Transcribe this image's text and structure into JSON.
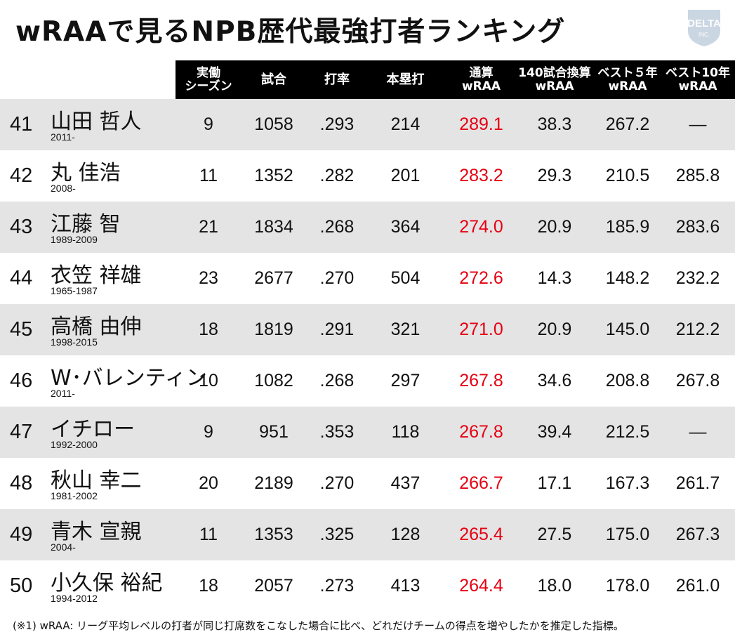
{
  "title": "wRAAで見るNPB歴代最強打者ランキング",
  "logo": {
    "top": "DELTA",
    "bottom": "INC."
  },
  "headers": [
    {
      "line1": "実働",
      "line2": "シーズン"
    },
    {
      "line1": "試合",
      "line2": ""
    },
    {
      "line1": "打率",
      "line2": ""
    },
    {
      "line1": "本塁打",
      "line2": ""
    },
    {
      "line1": "通算",
      "line2": "wRAA"
    },
    {
      "line1": "140試合換算",
      "line2": "wRAA"
    },
    {
      "line1": "ベスト５年",
      "line2": "wRAA"
    },
    {
      "line1": "ベスト10年",
      "line2": "wRAA"
    }
  ],
  "rows": [
    {
      "rank": "41",
      "name": "山田 哲人",
      "years": "2011-",
      "seasons": "9",
      "games": "1058",
      "avg": ".293",
      "hr": "214",
      "wraa": "289.1",
      "per140": "38.3",
      "best5": "267.2",
      "best10": "—"
    },
    {
      "rank": "42",
      "name": "丸 佳浩",
      "years": "2008-",
      "seasons": "11",
      "games": "1352",
      "avg": ".282",
      "hr": "201",
      "wraa": "283.2",
      "per140": "29.3",
      "best5": "210.5",
      "best10": "285.8"
    },
    {
      "rank": "43",
      "name": "江藤 智",
      "years": "1989-2009",
      "seasons": "21",
      "games": "1834",
      "avg": ".268",
      "hr": "364",
      "wraa": "274.0",
      "per140": "20.9",
      "best5": "185.9",
      "best10": "283.6"
    },
    {
      "rank": "44",
      "name": "衣笠 祥雄",
      "years": "1965-1987",
      "seasons": "23",
      "games": "2677",
      "avg": ".270",
      "hr": "504",
      "wraa": "272.6",
      "per140": "14.3",
      "best5": "148.2",
      "best10": "232.2"
    },
    {
      "rank": "45",
      "name": "高橋 由伸",
      "years": "1998-2015",
      "seasons": "18",
      "games": "1819",
      "avg": ".291",
      "hr": "321",
      "wraa": "271.0",
      "per140": "20.9",
      "best5": "145.0",
      "best10": "212.2"
    },
    {
      "rank": "46",
      "name": "W･バレンティン",
      "years": "2011-",
      "seasons": "10",
      "games": "1082",
      "avg": ".268",
      "hr": "297",
      "wraa": "267.8",
      "per140": "34.6",
      "best5": "208.8",
      "best10": "267.8"
    },
    {
      "rank": "47",
      "name": "イチロー",
      "years": "1992-2000",
      "seasons": "9",
      "games": "951",
      "avg": ".353",
      "hr": "118",
      "wraa": "267.8",
      "per140": "39.4",
      "best5": "212.5",
      "best10": "—"
    },
    {
      "rank": "48",
      "name": "秋山 幸二",
      "years": "1981-2002",
      "seasons": "20",
      "games": "2189",
      "avg": ".270",
      "hr": "437",
      "wraa": "266.7",
      "per140": "17.1",
      "best5": "167.3",
      "best10": "261.7"
    },
    {
      "rank": "49",
      "name": "青木 宣親",
      "years": "2004-",
      "seasons": "11",
      "games": "1353",
      "avg": ".325",
      "hr": "128",
      "wraa": "265.4",
      "per140": "27.5",
      "best5": "175.0",
      "best10": "267.3"
    },
    {
      "rank": "50",
      "name": "小久保 裕紀",
      "years": "1994-2012",
      "seasons": "18",
      "games": "2057",
      "avg": ".273",
      "hr": "413",
      "wraa": "264.4",
      "per140": "18.0",
      "best5": "178.0",
      "best10": "261.0"
    }
  ],
  "footnote": "(※1) wRAA: リーグ平均レベルの打者が同じ打席数をこなした場合に比べ、どれだけチームの得点を増やしたかを推定した指標。",
  "colors": {
    "accent": "#e60012",
    "header_bg": "#000000",
    "row_shade": "#e4e4e4"
  }
}
